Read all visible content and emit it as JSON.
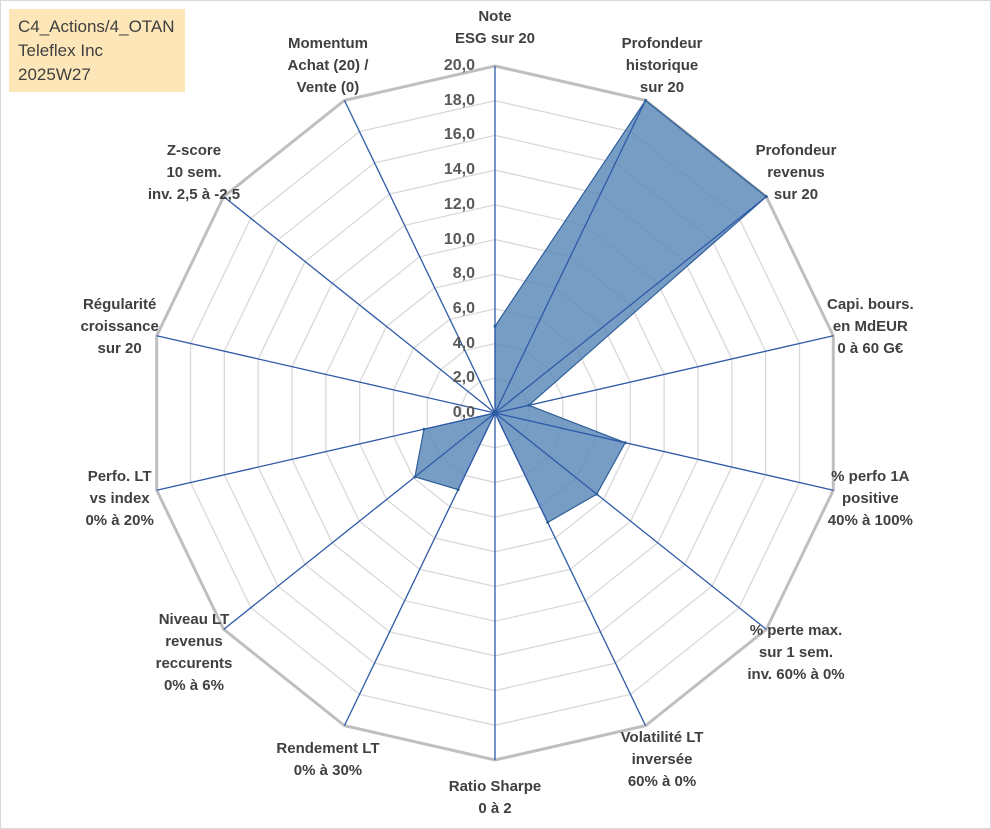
{
  "info_box": {
    "line1": "C4_Actions/4_OTAN",
    "line2": "Teleflex Inc",
    "line3": "2025W27"
  },
  "chart_data": {
    "type": "radar",
    "rmax": 20,
    "tick_labels": [
      "0,0",
      "2,0",
      "4,0",
      "6,0",
      "8,0",
      "10,0",
      "12,0",
      "14,0",
      "16,0",
      "18,0",
      "20,0"
    ],
    "axes": [
      {
        "lines": [
          "Note",
          "ESG sur 20"
        ]
      },
      {
        "lines": [
          "Profondeur",
          "historique",
          "sur 20"
        ]
      },
      {
        "lines": [
          "Profondeur",
          "revenus",
          "sur 20"
        ]
      },
      {
        "lines": [
          "Capi. bours.",
          "en MdEUR",
          "0 à 60 G€"
        ]
      },
      {
        "lines": [
          "% perfo 1A",
          "positive",
          "40% à 100%"
        ]
      },
      {
        "lines": [
          "% perte max.",
          "sur 1 sem.",
          "inv. 60% à 0%"
        ]
      },
      {
        "lines": [
          "Volatilité LT",
          "inversée",
          "60% à 0%"
        ]
      },
      {
        "lines": [
          "Ratio Sharpe",
          "0 à 2"
        ]
      },
      {
        "lines": [
          "Rendement LT",
          "0% à 30%"
        ]
      },
      {
        "lines": [
          "Niveau LT",
          "revenus",
          "reccurents",
          "0% à 6%"
        ]
      },
      {
        "lines": [
          "Perfo. LT",
          "vs index",
          "0% à 20%"
        ]
      },
      {
        "lines": [
          "Régularité",
          "croissance",
          "sur 20"
        ]
      },
      {
        "lines": [
          "Z-score",
          "10 sem.",
          "inv. 2,5 à -2,5"
        ]
      },
      {
        "lines": [
          "Momentum",
          "Achat (20) /",
          "Vente (0)"
        ]
      }
    ],
    "series": [
      {
        "values": [
          5.0,
          20.0,
          20.0,
          2.0,
          7.7,
          7.5,
          7.0,
          0.0,
          4.9,
          5.9,
          4.2,
          0.0,
          0.0,
          0.0
        ]
      }
    ],
    "colors": {
      "fill": "#5a87b8",
      "stroke": "#2f5f98",
      "spoke": "#2e5aa8",
      "outer_ring": "#bfbfbf",
      "inner_ring": "#d9d9d9"
    }
  }
}
